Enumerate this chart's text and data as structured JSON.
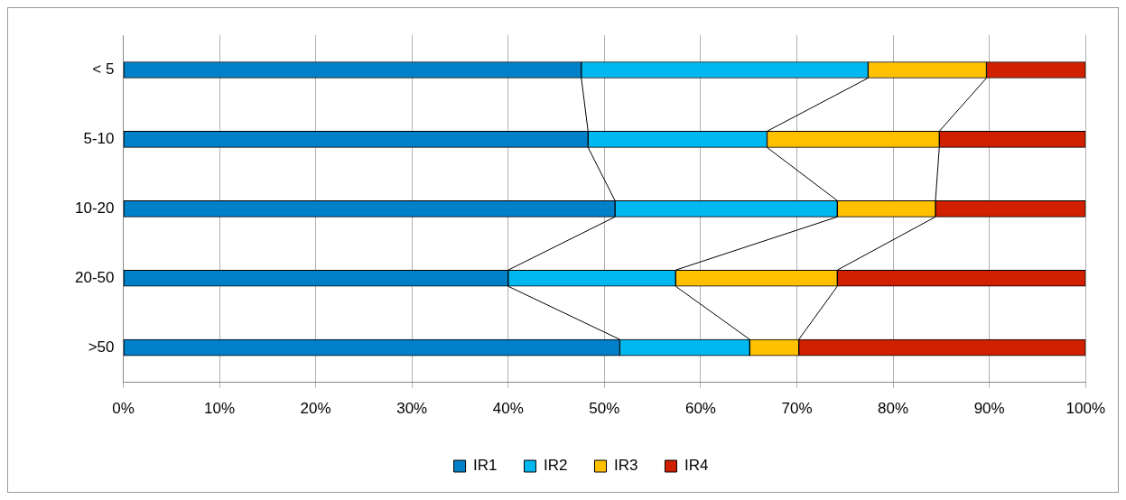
{
  "chart_data": {
    "type": "bar",
    "orientation": "horizontal",
    "stacked": true,
    "categories": [
      "< 5",
      "5-10",
      "10-20",
      "20-50",
      ">50"
    ],
    "series": [
      {
        "name": "IR1",
        "color": "#0080c8",
        "values": [
          47.6,
          48.3,
          51.1,
          40.0,
          51.6
        ]
      },
      {
        "name": "IR2",
        "color": "#00b8f0",
        "values": [
          29.8,
          18.6,
          23.1,
          17.4,
          13.5
        ]
      },
      {
        "name": "IR3",
        "color": "#ffc000",
        "values": [
          12.3,
          17.9,
          10.2,
          16.8,
          5.1
        ]
      },
      {
        "name": "IR4",
        "color": "#d02000",
        "values": [
          10.3,
          15.2,
          15.6,
          25.8,
          29.8
        ]
      }
    ],
    "xlim": [
      0,
      100
    ],
    "xticks": [
      {
        "value": 0,
        "label": "0%"
      },
      {
        "value": 10,
        "label": "10%"
      },
      {
        "value": 20,
        "label": "20%"
      },
      {
        "value": 30,
        "label": "30%"
      },
      {
        "value": 40,
        "label": "40%"
      },
      {
        "value": 50,
        "label": "50%"
      },
      {
        "value": 60,
        "label": "60%"
      },
      {
        "value": 70,
        "label": "70%"
      },
      {
        "value": 80,
        "label": "80%"
      },
      {
        "value": 90,
        "label": "90%"
      },
      {
        "value": 100,
        "label": "100%"
      }
    ],
    "grid": "x",
    "legend": "bottom"
  }
}
